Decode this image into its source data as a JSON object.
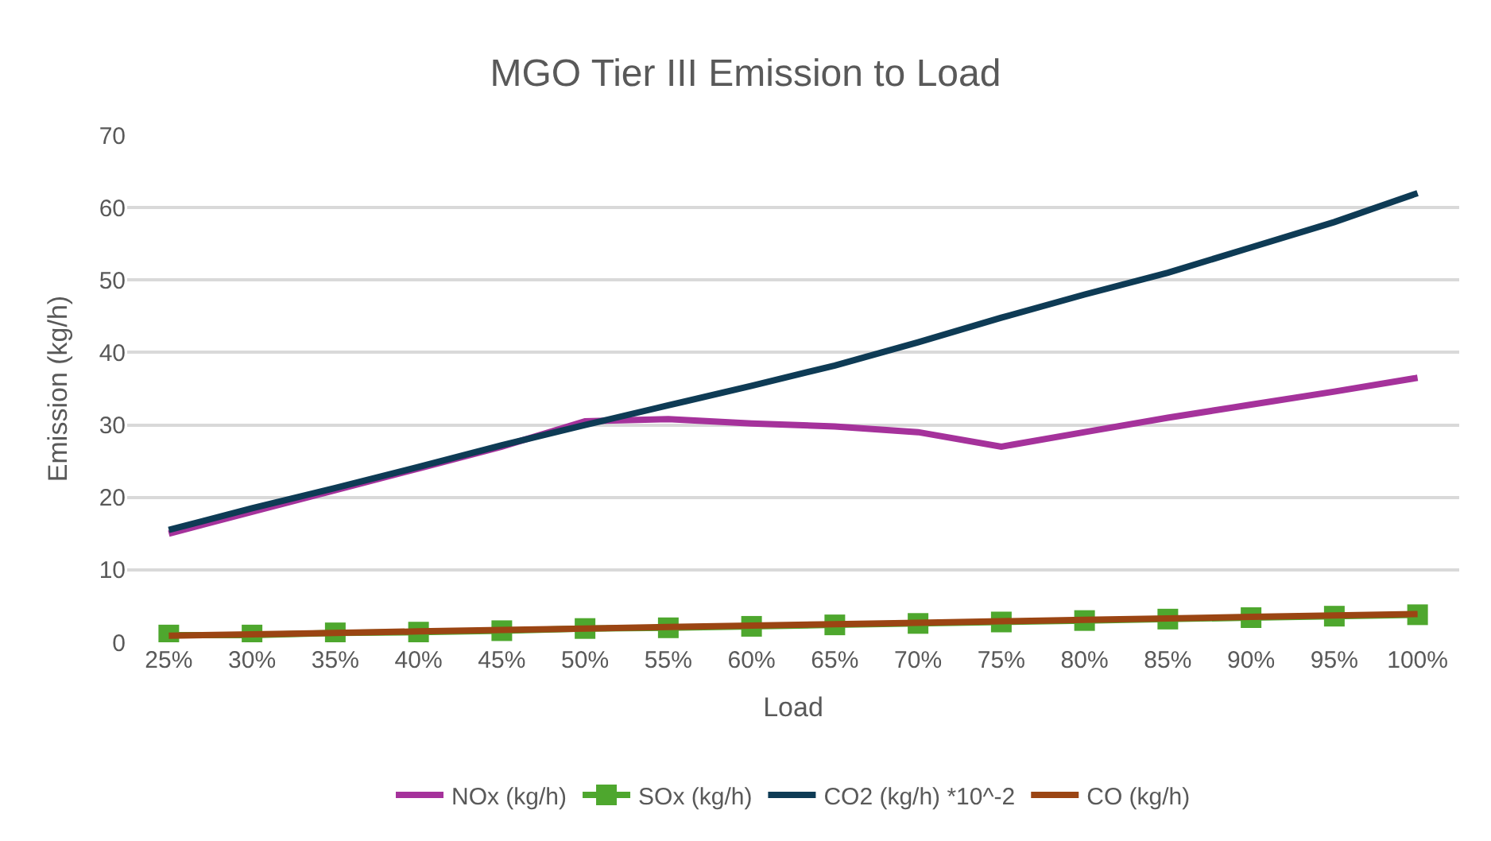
{
  "chart_data": {
    "type": "line",
    "title": "MGO Tier III Emission to Load",
    "xlabel": "Load",
    "ylabel": "Emission (kg/h)",
    "categories": [
      "25%",
      "30%",
      "35%",
      "40%",
      "45%",
      "50%",
      "55%",
      "60%",
      "65%",
      "70%",
      "75%",
      "80%",
      "85%",
      "90%",
      "95%",
      "100%"
    ],
    "series": [
      {
        "name": "NOx (kg/h)",
        "color": "#a5329b",
        "marker": "none",
        "values": [
          15,
          18,
          21,
          24,
          27,
          30.5,
          30.8,
          30.2,
          29.8,
          29,
          27,
          29,
          31,
          32.8,
          34.6,
          36.5
        ]
      },
      {
        "name": "SOx (kg/h)",
        "color": "#4ea72e",
        "marker": "square",
        "values": [
          1,
          1,
          1.3,
          1.4,
          1.6,
          1.9,
          2,
          2.2,
          2.4,
          2.6,
          2.8,
          3,
          3.2,
          3.4,
          3.6,
          3.8
        ]
      },
      {
        "name": "CO2 (kg/h) *10^-2",
        "color": "#0e3b55",
        "marker": "none",
        "values": [
          15.5,
          18.5,
          21.3,
          24.2,
          27.2,
          30,
          32.7,
          35.4,
          38.2,
          41.4,
          44.8,
          48,
          51,
          54.5,
          58,
          62
        ]
      },
      {
        "name": "CO (kg/h)",
        "color": "#9b4513",
        "marker": "none",
        "values": [
          0.9,
          1.1,
          1.3,
          1.5,
          1.7,
          1.9,
          2.1,
          2.3,
          2.5,
          2.7,
          2.9,
          3.1,
          3.3,
          3.5,
          3.7,
          3.9
        ]
      }
    ],
    "ylim": [
      0,
      70
    ],
    "yticks": [
      0,
      10,
      20,
      30,
      40,
      50,
      60,
      70
    ],
    "grid": "y",
    "legend": "bottom",
    "line_style": "solid"
  }
}
